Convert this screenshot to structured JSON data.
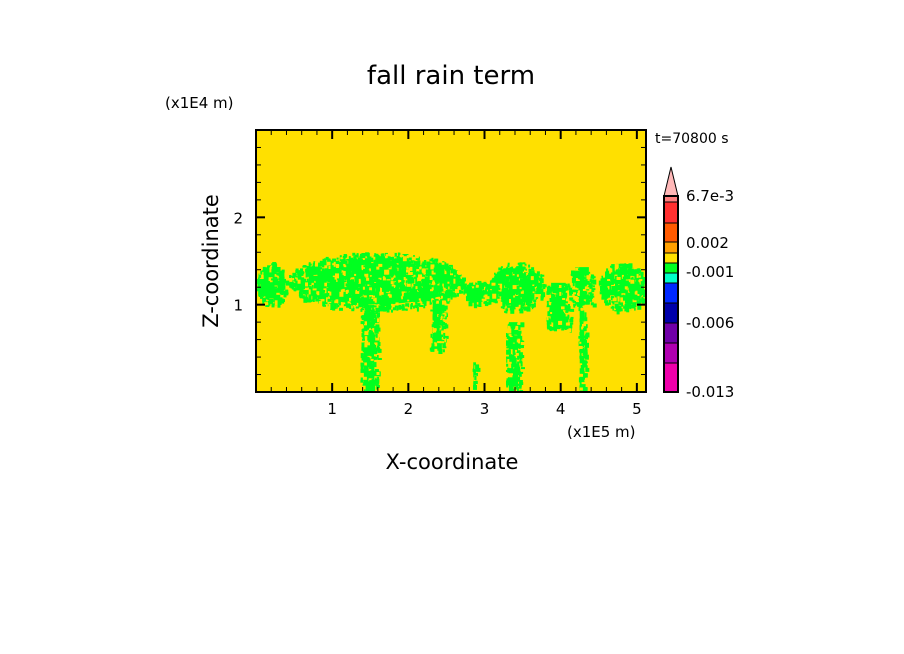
{
  "chart_data": {
    "type": "heatmap",
    "title": "fall rain term",
    "xlabel": "X-coordinate",
    "ylabel": "Z-coordinate",
    "x_unit": "(x1E5 m)",
    "y_unit": "(x1E4 m)",
    "time_label": "t=70800 s",
    "xlim": [
      0,
      5.12
    ],
    "ylim": [
      0,
      3.0
    ],
    "x_ticks": [
      1,
      2,
      3,
      4,
      5
    ],
    "y_ticks": [
      1,
      2
    ],
    "x_tick_labels": [
      "1",
      "2",
      "3",
      "4",
      "5"
    ],
    "y_tick_labels": [
      "1",
      "2"
    ],
    "background_level_color": "#ffe000",
    "feature_color": "#00ff20",
    "green_regions": [
      {
        "x": [
          0.01,
          0.39
        ],
        "z": [
          1.0,
          1.49
        ]
      },
      {
        "x": [
          0.43,
          2.73
        ],
        "z": [
          0.94,
          1.6
        ]
      },
      {
        "x": [
          2.71,
          3.16
        ],
        "z": [
          1.0,
          1.28
        ]
      },
      {
        "x": [
          3.06,
          3.77
        ],
        "z": [
          0.94,
          1.49
        ]
      },
      {
        "x": [
          3.81,
          4.13
        ],
        "z": [
          0.72,
          1.25
        ]
      },
      {
        "x": [
          4.13,
          4.43
        ],
        "z": [
          1.0,
          1.43
        ]
      },
      {
        "x": [
          4.5,
          5.12
        ],
        "z": [
          0.94,
          1.49
        ]
      },
      {
        "x": [
          1.37,
          1.6
        ],
        "z": [
          0.0,
          1.0
        ]
      },
      {
        "x": [
          2.28,
          2.48
        ],
        "z": [
          0.48,
          1.05
        ]
      },
      {
        "x": [
          3.28,
          3.48
        ],
        "z": [
          0.0,
          0.8
        ]
      },
      {
        "x": [
          4.23,
          4.33
        ],
        "z": [
          0.0,
          1.0
        ]
      },
      {
        "x": [
          2.84,
          2.9
        ],
        "z": [
          0.08,
          0.34
        ]
      }
    ],
    "colorbar": {
      "colors": [
        "#ee00aa",
        "#b000b0",
        "#7000a8",
        "#0000aa",
        "#0028ff",
        "#00ffc8",
        "#00ff20",
        "#ffe000",
        "#ffa000",
        "#ff5a00",
        "#ff3030",
        "#ff8080"
      ],
      "extend_color": "#ffb8b8",
      "labels": [
        "6.7e-3",
        "0.002",
        "-0.001",
        "-0.006",
        "-0.013"
      ]
    }
  }
}
